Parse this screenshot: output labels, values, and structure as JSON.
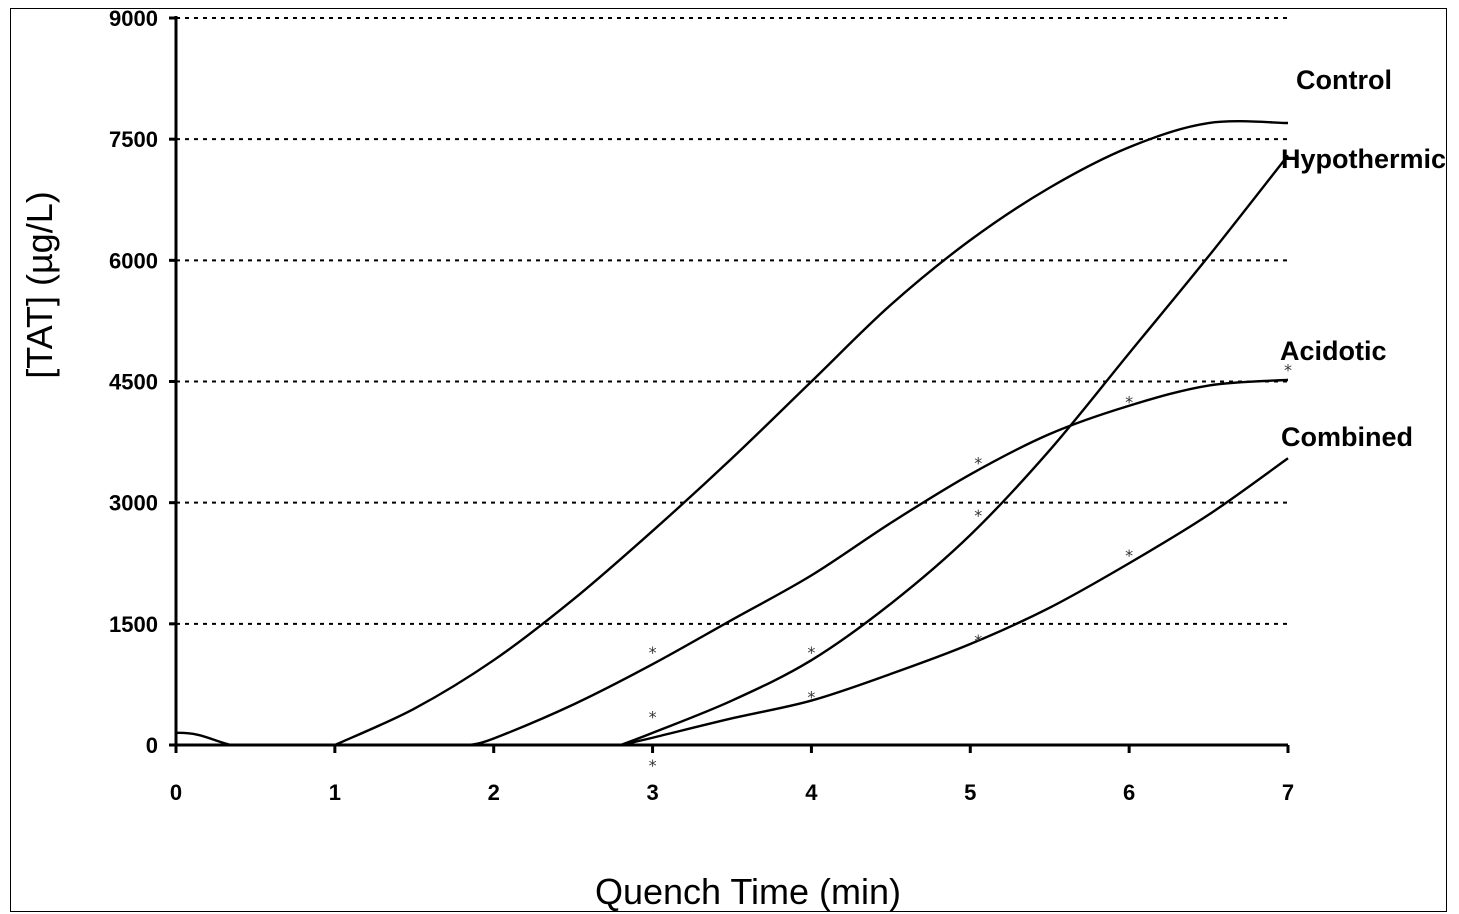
{
  "chart_data": {
    "type": "line",
    "xlabel": "Quench Time (min)",
    "ylabel": "[TAT] (µg/L)",
    "xlim": [
      0,
      7
    ],
    "ylim": [
      0,
      9000
    ],
    "x_ticks": [
      "0",
      "1",
      "2",
      "3",
      "4",
      "5",
      "6",
      "7"
    ],
    "y_ticks": [
      "0",
      "1500",
      "3000",
      "4500",
      "6000",
      "7500",
      "9000"
    ],
    "grid": "horizontal dashed",
    "series": [
      {
        "name": "Control",
        "x": [
          0,
          1.0,
          1.5,
          2.0,
          2.5,
          3.0,
          3.5,
          4.0,
          4.5,
          5.0,
          5.5,
          6.0,
          6.5,
          7.0
        ],
        "y": [
          0,
          0,
          450,
          1050,
          1800,
          2650,
          3550,
          4500,
          5450,
          6250,
          6900,
          7400,
          7700,
          7700
        ]
      },
      {
        "name": "Hypothermic",
        "x": [
          0,
          2.8,
          3.0,
          3.5,
          4.0,
          4.5,
          5.0,
          5.5,
          6.0,
          6.5,
          7.0
        ],
        "y": [
          0,
          0,
          150,
          550,
          1050,
          1750,
          2600,
          3650,
          4850,
          6050,
          7300
        ]
      },
      {
        "name": "Acidotic",
        "x": [
          0,
          1.85,
          2.0,
          2.5,
          3.0,
          3.5,
          4.0,
          4.5,
          5.0,
          5.5,
          6.0,
          6.5,
          7.0
        ],
        "y": [
          0,
          0,
          80,
          500,
          1000,
          1550,
          2100,
          2750,
          3350,
          3850,
          4200,
          4450,
          4520
        ]
      },
      {
        "name": "Combined",
        "x": [
          0,
          2.8,
          3.0,
          3.5,
          4.0,
          4.5,
          5.0,
          5.5,
          6.0,
          6.5,
          7.0
        ],
        "y": [
          0,
          0,
          90,
          330,
          550,
          880,
          1250,
          1700,
          2250,
          2850,
          3550
        ]
      }
    ],
    "markers": [
      {
        "x": 3.0,
        "y": 1150
      },
      {
        "x": 3.0,
        "y": 350
      },
      {
        "x": 3.0,
        "y": -250
      },
      {
        "x": 4.0,
        "y": 1150
      },
      {
        "x": 4.0,
        "y": 600
      },
      {
        "x": 5.05,
        "y": 3500
      },
      {
        "x": 5.05,
        "y": 2850
      },
      {
        "x": 5.05,
        "y": 1300
      },
      {
        "x": 6.0,
        "y": 4250
      },
      {
        "x": 6.0,
        "y": 2350
      },
      {
        "x": 7.0,
        "y": 4650
      }
    ]
  }
}
